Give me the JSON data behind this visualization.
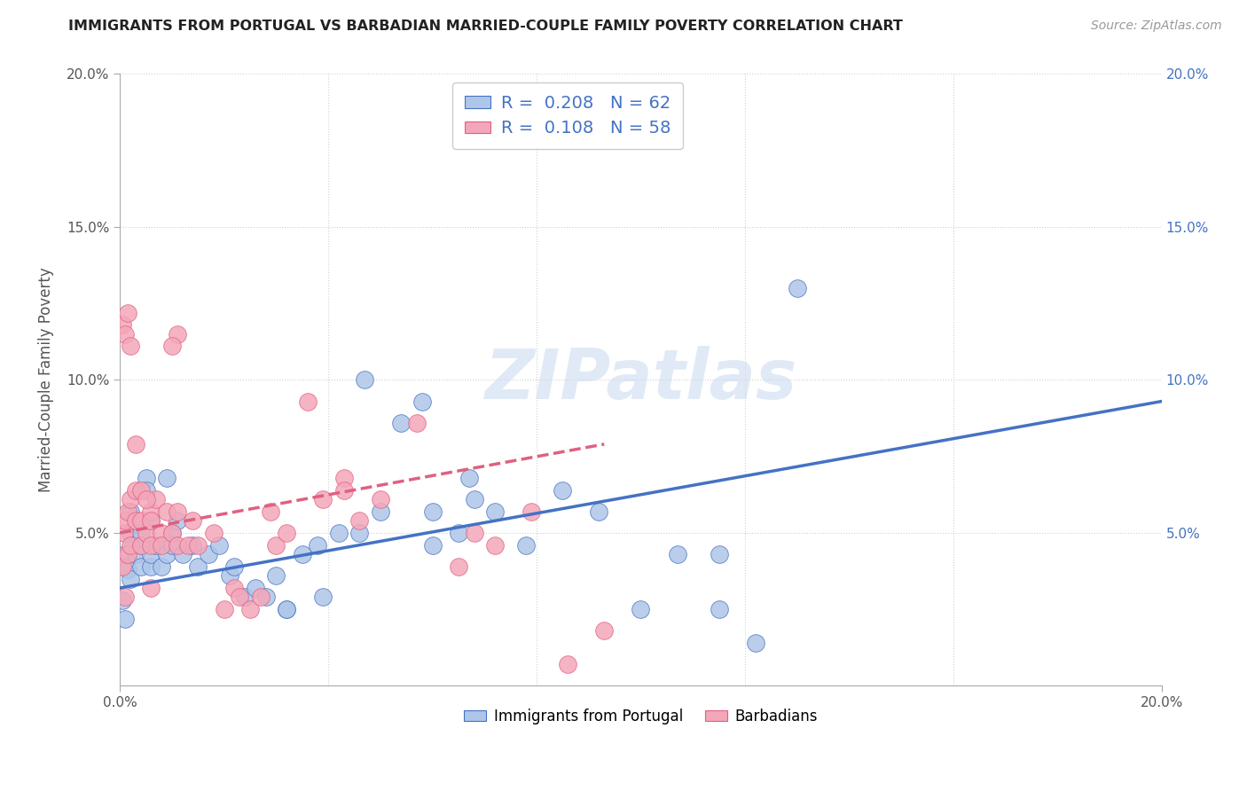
{
  "title": "IMMIGRANTS FROM PORTUGAL VS BARBADIAN MARRIED-COUPLE FAMILY POVERTY CORRELATION CHART",
  "source": "Source: ZipAtlas.com",
  "ylabel": "Married-Couple Family Poverty",
  "xlabel": "",
  "watermark": "ZIPatlas",
  "legend_blue_R": "0.208",
  "legend_blue_N": "62",
  "legend_pink_R": "0.108",
  "legend_pink_N": "58",
  "blue_color": "#aec6e8",
  "pink_color": "#f4a7b9",
  "blue_line_color": "#4472c4",
  "pink_line_color": "#e06080",
  "xlim": [
    0.0,
    0.2
  ],
  "ylim": [
    0.0,
    0.2
  ],
  "xticks": [
    0.0,
    0.2
  ],
  "xticklabels": [
    "0.0%",
    "20.0%"
  ],
  "yticks": [
    0.05,
    0.1,
    0.15,
    0.2
  ],
  "yticklabels": [
    "5.0%",
    "10.0%",
    "15.0%",
    "20.0%"
  ],
  "xgrid_ticks": [
    0.0,
    0.04,
    0.08,
    0.12,
    0.16,
    0.2
  ],
  "ygrid_ticks": [
    0.0,
    0.05,
    0.1,
    0.15,
    0.2
  ],
  "blue_scatter_x": [
    0.0005,
    0.001,
    0.0015,
    0.001,
    0.002,
    0.0025,
    0.002,
    0.003,
    0.003,
    0.002,
    0.004,
    0.004,
    0.005,
    0.005,
    0.004,
    0.006,
    0.006,
    0.007,
    0.006,
    0.008,
    0.009,
    0.009,
    0.01,
    0.011,
    0.01,
    0.012,
    0.014,
    0.015,
    0.017,
    0.019,
    0.021,
    0.022,
    0.024,
    0.026,
    0.028,
    0.03,
    0.032,
    0.035,
    0.038,
    0.042,
    0.046,
    0.05,
    0.058,
    0.06,
    0.065,
    0.067,
    0.072,
    0.078,
    0.085,
    0.092,
    0.1,
    0.107,
    0.115,
    0.047,
    0.054,
    0.06,
    0.068,
    0.032,
    0.039,
    0.115,
    0.122,
    0.13
  ],
  "blue_scatter_y": [
    0.028,
    0.022,
    0.038,
    0.043,
    0.05,
    0.046,
    0.035,
    0.053,
    0.043,
    0.057,
    0.039,
    0.05,
    0.068,
    0.064,
    0.046,
    0.039,
    0.043,
    0.046,
    0.054,
    0.039,
    0.068,
    0.043,
    0.05,
    0.054,
    0.046,
    0.043,
    0.046,
    0.039,
    0.043,
    0.046,
    0.036,
    0.039,
    0.029,
    0.032,
    0.029,
    0.036,
    0.025,
    0.043,
    0.046,
    0.05,
    0.05,
    0.057,
    0.093,
    0.046,
    0.05,
    0.068,
    0.057,
    0.046,
    0.064,
    0.057,
    0.025,
    0.043,
    0.043,
    0.1,
    0.086,
    0.057,
    0.061,
    0.025,
    0.029,
    0.025,
    0.014,
    0.13
  ],
  "pink_scatter_x": [
    0.0005,
    0.001,
    0.0008,
    0.0015,
    0.001,
    0.002,
    0.0015,
    0.003,
    0.002,
    0.004,
    0.003,
    0.005,
    0.006,
    0.004,
    0.006,
    0.007,
    0.008,
    0.006,
    0.008,
    0.01,
    0.009,
    0.011,
    0.011,
    0.01,
    0.013,
    0.014,
    0.015,
    0.018,
    0.02,
    0.022,
    0.023,
    0.025,
    0.027,
    0.029,
    0.03,
    0.032,
    0.036,
    0.039,
    0.043,
    0.046,
    0.05,
    0.057,
    0.065,
    0.068,
    0.072,
    0.079,
    0.086,
    0.093,
    0.0005,
    0.001,
    0.0015,
    0.002,
    0.003,
    0.004,
    0.005,
    0.006,
    0.011,
    0.043
  ],
  "pink_scatter_y": [
    0.039,
    0.029,
    0.05,
    0.043,
    0.054,
    0.046,
    0.057,
    0.054,
    0.061,
    0.046,
    0.064,
    0.05,
    0.046,
    0.054,
    0.057,
    0.061,
    0.05,
    0.054,
    0.046,
    0.05,
    0.057,
    0.046,
    0.115,
    0.111,
    0.046,
    0.054,
    0.046,
    0.05,
    0.025,
    0.032,
    0.029,
    0.025,
    0.029,
    0.057,
    0.046,
    0.05,
    0.093,
    0.061,
    0.068,
    0.054,
    0.061,
    0.086,
    0.039,
    0.05,
    0.046,
    0.057,
    0.007,
    0.018,
    0.118,
    0.115,
    0.122,
    0.111,
    0.079,
    0.064,
    0.061,
    0.032,
    0.057,
    0.064
  ],
  "blue_trend_x": [
    0.0,
    0.2
  ],
  "blue_trend_y": [
    0.032,
    0.093
  ],
  "pink_trend_x": [
    0.0,
    0.093
  ],
  "pink_trend_y": [
    0.05,
    0.079
  ],
  "legend_label_blue": "Immigrants from Portugal",
  "legend_label_pink": "Barbadians"
}
